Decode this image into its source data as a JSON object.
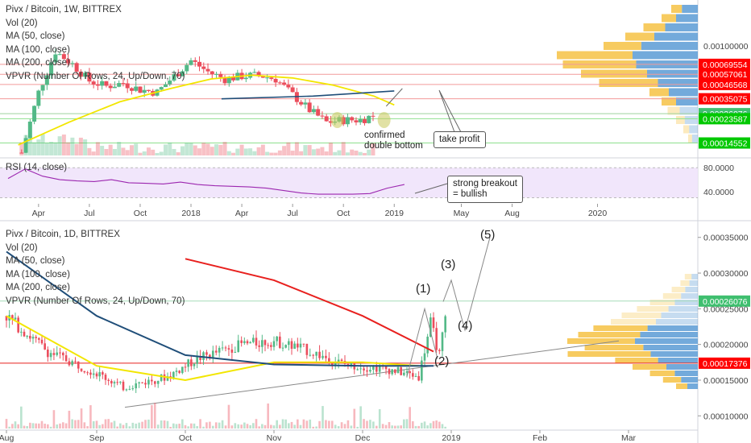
{
  "top": {
    "legend": [
      "Pivx / Bitcoin, 1W, BITTREX",
      "Vol (20)",
      "MA (50, close)",
      "MA (100, close)",
      "MA (200, close)",
      "VPVR (Number Of Rows, 24, Up/Down, 70)"
    ],
    "rsi_label": "RSI (14, close)",
    "annotations": {
      "double_bottom": "confirmed\ndouble bottom",
      "take_profit": "take profit",
      "breakout": "strong breakout\n= bullish"
    }
  },
  "bottom": {
    "legend": [
      "Pivx / Bitcoin, 1D, BITTREX",
      "Vol (20)",
      "MA (50, close)",
      "MA (100, close)",
      "MA (200, close)",
      "VPVR (Number Of Rows, 24, Up/Down, 70)"
    ],
    "waves": [
      "(1)",
      "(2)",
      "(3)",
      "(4)",
      "(5)"
    ]
  },
  "colors": {
    "up": "#53b987",
    "down": "#eb4d5c",
    "ma50": "#f2e600",
    "ma100": "#1f4e79",
    "ma200": "#e8201e",
    "rsi": "#9c27b0",
    "vp_up": "#5b9bd5",
    "vp_down": "#f6c244",
    "label_red": "#ff0000",
    "label_green": "#00c800"
  },
  "chart_data": [
    {
      "type": "candlestick",
      "title": "Pivx / Bitcoin, 1W, BITTREX",
      "x_ticks": [
        "Apr",
        "Jul",
        "Oct",
        "2018",
        "Apr",
        "Jul",
        "Oct",
        "2019",
        "May",
        "Aug",
        "2020"
      ],
      "y_ticks": [
        "0.00100000"
      ],
      "y_scale": "log",
      "price_labels": [
        {
          "value": "0.00069554",
          "kind": "resistance"
        },
        {
          "value": "0.00057061",
          "kind": "resistance"
        },
        {
          "value": "0.00046568",
          "kind": "resistance"
        },
        {
          "value": "0.00035075",
          "kind": "resistance"
        },
        {
          "value": "0.00026076",
          "kind": "current"
        },
        {
          "value": "0.00023587",
          "kind": "support"
        },
        {
          "value": "0.00014552",
          "kind": "support"
        }
      ],
      "series": [
        {
          "name": "MA (50, close)"
        },
        {
          "name": "MA (100, close)"
        }
      ],
      "close_path": [
        [
          "2017-03",
          0.00012
        ],
        [
          "2017-04",
          0.0004
        ],
        [
          "2017-05",
          0.0009
        ],
        [
          "2017-06",
          0.0007
        ],
        [
          "2017-07",
          0.0005
        ],
        [
          "2017-08",
          0.00045
        ],
        [
          "2017-09",
          0.00048
        ],
        [
          "2017-10",
          0.00042
        ],
        [
          "2017-11",
          0.0004
        ],
        [
          "2017-12",
          0.00055
        ],
        [
          "2018-01",
          0.00075
        ],
        [
          "2018-02",
          0.0006
        ],
        [
          "2018-03",
          0.00052
        ],
        [
          "2018-04",
          0.00055
        ],
        [
          "2018-05",
          0.00056
        ],
        [
          "2018-06",
          0.00052
        ],
        [
          "2018-07",
          0.00038
        ],
        [
          "2018-08",
          0.00028
        ],
        [
          "2018-09",
          0.00022
        ],
        [
          "2018-10",
          0.00023
        ],
        [
          "2018-11",
          0.00023
        ],
        [
          "2018-12",
          0.00026
        ]
      ]
    },
    {
      "type": "line",
      "title": "RSI (14, close)",
      "y_ticks": [
        "80.0000",
        "40.0000"
      ],
      "values": [
        62,
        78,
        66,
        60,
        58,
        57,
        60,
        55,
        54,
        53,
        56,
        52,
        50,
        49,
        48,
        46,
        42,
        38,
        36,
        36,
        36,
        37,
        46,
        52
      ]
    },
    {
      "type": "candlestick",
      "title": "Pivx / Bitcoin, 1D, BITTREX",
      "x_ticks": [
        "Aug",
        "Sep",
        "Oct",
        "Nov",
        "Dec",
        "2019",
        "Feb",
        "Mar"
      ],
      "y_ticks": [
        "0.00035000",
        "0.00030000",
        "0.00025000",
        "0.00020000",
        "0.00015000",
        "0.00010000"
      ],
      "ylim": [
        8e-05,
        0.00037
      ],
      "price_labels": [
        {
          "value": "0.00026076",
          "kind": "current"
        },
        {
          "value": "0.00017376",
          "kind": "support"
        }
      ],
      "series": [
        {
          "name": "MA (50, close)",
          "points": [
            [
              "Aug",
              0.00024
            ],
            [
              "Sep",
              0.00017
            ],
            [
              "Oct",
              0.00015
            ],
            [
              "Nov",
              0.000175
            ],
            [
              "Dec",
              0.000175
            ],
            [
              "Dec-20",
              0.00017
            ]
          ]
        },
        {
          "name": "MA (100, close)",
          "points": [
            [
              "Aug",
              0.00033
            ],
            [
              "Sep",
              0.00024
            ],
            [
              "Oct",
              0.000185
            ],
            [
              "Nov",
              0.000172
            ],
            [
              "Dec",
              0.00017
            ],
            [
              "Dec-25",
              0.00017
            ]
          ]
        },
        {
          "name": "MA (200, close)",
          "points": [
            [
              "Oct",
              0.00032
            ],
            [
              "Nov",
              0.00029
            ],
            [
              "Dec",
              0.00024
            ],
            [
              "Dec-25",
              0.00019
            ]
          ]
        }
      ],
      "close_path": [
        [
          "Aug-01",
          0.00024
        ],
        [
          "Aug-15",
          0.00019
        ],
        [
          "Sep-01",
          0.00016
        ],
        [
          "Sep-10",
          0.00014
        ],
        [
          "Sep-25",
          0.000155
        ],
        [
          "Oct-05",
          0.00018
        ],
        [
          "Oct-20",
          0.0002
        ],
        [
          "Nov-01",
          0.000205
        ],
        [
          "Nov-10",
          0.000195
        ],
        [
          "Nov-25",
          0.000172
        ],
        [
          "Dec-10",
          0.000165
        ],
        [
          "Dec-20",
          0.000155
        ],
        [
          "Dec-24",
          0.00023
        ],
        [
          "Dec-27",
          0.000185
        ],
        [
          "Dec-30",
          0.00026
        ]
      ],
      "projection": [
        [
          "Dec-30",
          0.00026
        ],
        [
          "Jan-03",
          0.00029
        ],
        [
          "Jan-08",
          0.00022
        ],
        [
          "Jan-15",
          0.00035
        ]
      ]
    }
  ]
}
